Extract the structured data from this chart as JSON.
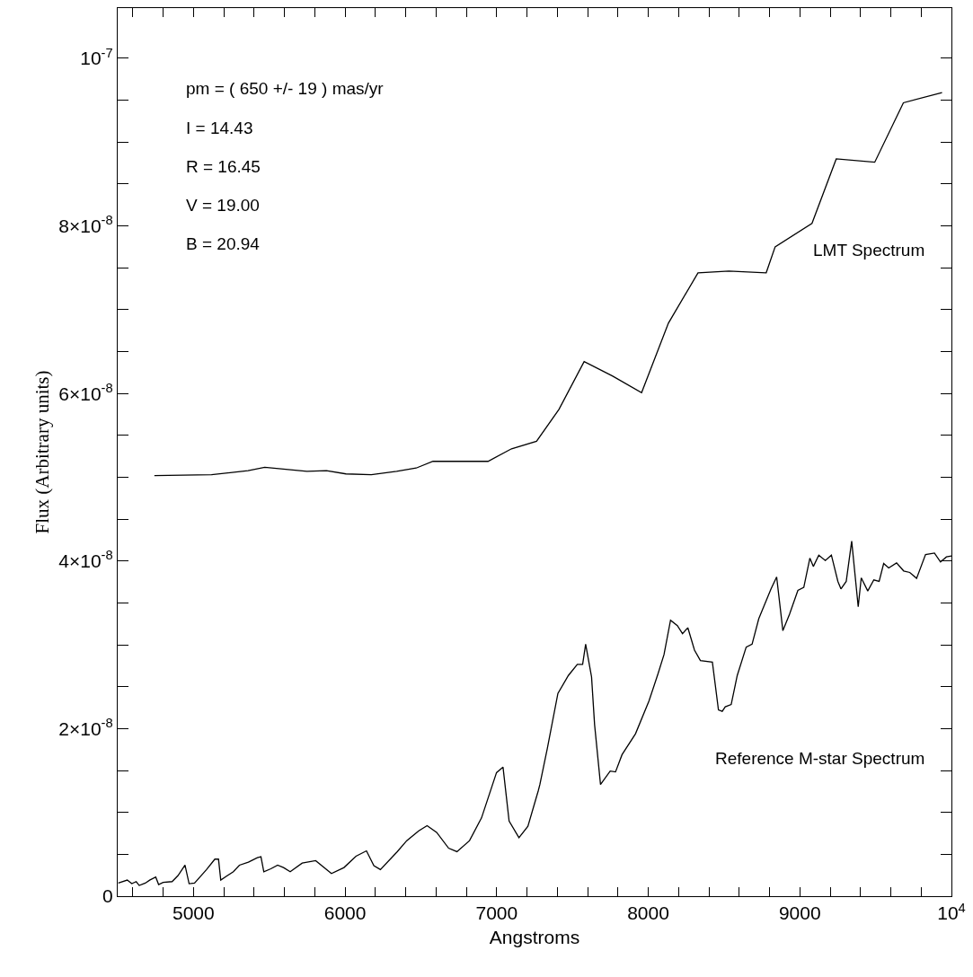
{
  "chart_data": {
    "type": "line",
    "xlabel": "Angstroms",
    "ylabel": "Flux (Arbitrary units)",
    "annotations": [
      "pm = ( 650 +/- 19 ) mas/yr",
      "I = 14.43",
      "R = 16.45",
      "V = 19.00",
      "B = 20.94"
    ],
    "xlim": [
      4500,
      10000
    ],
    "xticks": [
      {
        "value": 4600,
        "label": null
      },
      {
        "value": 4800,
        "label": null
      },
      5000,
      {
        "value": 5200,
        "label": null
      },
      {
        "value": 5400,
        "label": null
      },
      {
        "value": 5600,
        "label": null
      },
      {
        "value": 5800,
        "label": null
      },
      6000,
      {
        "value": 6200,
        "label": null
      },
      {
        "value": 6400,
        "label": null
      },
      {
        "value": 6600,
        "label": null
      },
      {
        "value": 6800,
        "label": null
      },
      7000,
      {
        "value": 7200,
        "label": null
      },
      {
        "value": 7400,
        "label": null
      },
      {
        "value": 7600,
        "label": null
      },
      {
        "value": 7800,
        "label": null
      },
      8000,
      {
        "value": 8200,
        "label": null
      },
      {
        "value": 8400,
        "label": null
      },
      {
        "value": 8600,
        "label": null
      },
      {
        "value": 8800,
        "label": null
      },
      9000,
      {
        "value": 9200,
        "label": null
      },
      {
        "value": 9400,
        "label": null
      },
      {
        "value": 9600,
        "label": null
      },
      {
        "value": 9800,
        "label": null
      },
      {
        "value": 10000,
        "label": "10$^{4}$"
      }
    ],
    "ylim": [
      0,
      1.06e-07
    ],
    "yticks": [
      0,
      {
        "value": 5e-09,
        "label": null
      },
      {
        "value": 1e-08,
        "label": null
      },
      {
        "value": 1.5e-08,
        "label": null
      },
      {
        "value": 2e-08,
        "label": "2×10$^{-8}$"
      },
      {
        "value": 2.5e-08,
        "label": null
      },
      {
        "value": 3e-08,
        "label": null
      },
      {
        "value": 3.5e-08,
        "label": null
      },
      {
        "value": 4e-08,
        "label": "4×10$^{-8}$"
      },
      {
        "value": 4.5e-08,
        "label": null
      },
      {
        "value": 5e-08,
        "label": null
      },
      {
        "value": 5.5e-08,
        "label": null
      },
      {
        "value": 6e-08,
        "label": "6×10$^{-8}$"
      },
      {
        "value": 6.5e-08,
        "label": null
      },
      {
        "value": 7e-08,
        "label": null
      },
      {
        "value": 7.5e-08,
        "label": null
      },
      {
        "value": 8e-08,
        "label": "8×10$^{-8}$"
      },
      {
        "value": 8.5e-08,
        "label": null
      },
      {
        "value": 9e-08,
        "label": null
      },
      {
        "value": 9.5e-08,
        "label": null
      },
      {
        "value": 1e-07,
        "label": "10$^{-7}$"
      }
    ],
    "grid": false,
    "legend": false,
    "marker": "none",
    "line_style": "solid",
    "series": [
      {
        "name": "LMT Spectrum",
        "color": "#000000",
        "x": [
          4742,
          5119,
          5360,
          5470,
          5748,
          5877,
          6006,
          6173,
          6340,
          6469,
          6580,
          6943,
          7098,
          7263,
          7411,
          7577,
          7763,
          7956,
          8133,
          8328,
          8532,
          8778,
          8837,
          9080,
          9240,
          9494,
          9683,
          9938
        ],
        "values": [
          5.02e-08,
          5.03e-08,
          5.08e-08,
          5.12e-08,
          5.07e-08,
          5.08e-08,
          5.04e-08,
          5.03e-08,
          5.07e-08,
          5.11e-08,
          5.19e-08,
          5.19e-08,
          5.34e-08,
          5.43e-08,
          5.81e-08,
          6.38e-08,
          6.21e-08,
          6.01e-08,
          6.84e-08,
          7.44e-08,
          7.46e-08,
          7.44e-08,
          7.75e-08,
          8.03e-08,
          8.8e-08,
          8.76e-08,
          9.47e-08,
          9.59e-08
        ]
      },
      {
        "name": "Reference M-star Spectrum",
        "color": "#000000",
        "x": [
          4504,
          4563,
          4593,
          4622,
          4642,
          4682,
          4711,
          4751,
          4770,
          4800,
          4859,
          4898,
          4944,
          4971,
          5007,
          5086,
          5141,
          5165,
          5180,
          5224,
          5263,
          5303,
          5362,
          5421,
          5445,
          5464,
          5510,
          5555,
          5594,
          5638,
          5717,
          5806,
          5910,
          5993,
          6072,
          6141,
          6190,
          6233,
          6344,
          6407,
          6486,
          6541,
          6604,
          6683,
          6738,
          6821,
          6900,
          6999,
          7042,
          7082,
          7147,
          7206,
          7275,
          7285,
          7334,
          7404,
          7473,
          7532,
          7567,
          7587,
          7626,
          7646,
          7685,
          7749,
          7784,
          7827,
          7916,
          8005,
          8064,
          8104,
          8147,
          8192,
          8226,
          8261,
          8305,
          8344,
          8423,
          8463,
          8488,
          8508,
          8547,
          8587,
          8646,
          8685,
          8729,
          8810,
          8847,
          8888,
          8932,
          8987,
          9026,
          9066,
          9089,
          9125,
          9168,
          9208,
          9251,
          9271,
          9306,
          9342,
          9385,
          9405,
          9448,
          9488,
          9523,
          9553,
          9586,
          9638,
          9685,
          9725,
          9770,
          9829,
          9888,
          9928,
          9967,
          10000
        ],
        "values": [
          1.56e-09,
          1.92e-09,
          1.49e-09,
          1.74e-09,
          1.28e-09,
          1.56e-09,
          1.92e-09,
          2.28e-09,
          1.39e-09,
          1.64e-09,
          1.74e-09,
          2.46e-09,
          3.7e-09,
          1.49e-09,
          1.56e-09,
          3.17e-09,
          4.42e-09,
          4.42e-09,
          1.92e-09,
          2.46e-09,
          2.92e-09,
          3.7e-09,
          4.06e-09,
          4.59e-09,
          4.7e-09,
          2.92e-09,
          3.27e-09,
          3.7e-09,
          3.42e-09,
          2.92e-09,
          3.95e-09,
          4.24e-09,
          2.7e-09,
          3.42e-09,
          4.77e-09,
          5.41e-09,
          3.63e-09,
          3.17e-09,
          5.31e-09,
          6.63e-09,
          7.8e-09,
          8.41e-09,
          7.62e-09,
          5.73e-09,
          5.31e-09,
          6.63e-09,
          9.34e-09,
          1.475e-08,
          1.54e-08,
          8.98e-09,
          6.98e-09,
          8.34e-09,
          1.262e-08,
          1.333e-08,
          1.761e-08,
          2.42e-08,
          2.634e-08,
          2.766e-08,
          2.766e-08,
          3.008e-08,
          2.616e-08,
          2.046e-08,
          1.333e-08,
          1.493e-08,
          1.483e-08,
          1.689e-08,
          1.939e-08,
          2.331e-08,
          2.652e-08,
          2.884e-08,
          3.294e-08,
          3.229e-08,
          3.133e-08,
          3.204e-08,
          2.937e-08,
          2.812e-08,
          2.794e-08,
          2.224e-08,
          2.206e-08,
          2.26e-08,
          2.288e-08,
          2.634e-08,
          2.973e-08,
          3.008e-08,
          3.311e-08,
          3.668e-08,
          3.81e-08,
          3.169e-08,
          3.365e-08,
          3.65e-08,
          3.686e-08,
          4.035e-08,
          3.935e-08,
          4.071e-08,
          4.007e-08,
          4.071e-08,
          3.757e-08,
          3.668e-08,
          3.757e-08,
          4.238e-08,
          3.454e-08,
          3.8e-08,
          3.643e-08,
          3.775e-08,
          3.757e-08,
          3.971e-08,
          3.917e-08,
          3.978e-08,
          3.882e-08,
          3.864e-08,
          3.793e-08,
          4.078e-08,
          4.096e-08,
          3.989e-08,
          4.049e-08,
          4.06e-08
        ]
      }
    ]
  }
}
